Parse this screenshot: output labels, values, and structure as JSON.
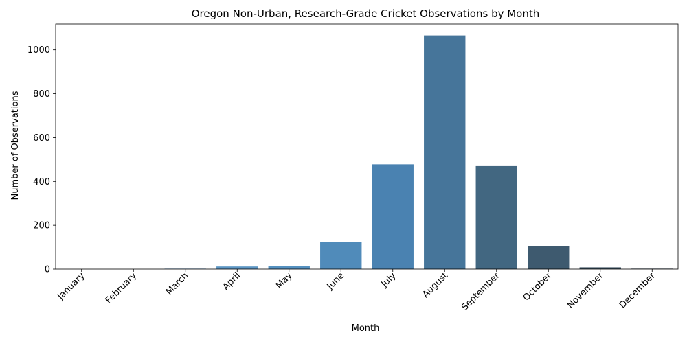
{
  "chart_data": {
    "type": "bar",
    "title": "Oregon Non-Urban, Research-Grade Cricket Observations by Month",
    "xlabel": "Month",
    "ylabel": "Number of Observations",
    "categories": [
      "January",
      "February",
      "March",
      "April",
      "May",
      "June",
      "July",
      "August",
      "September",
      "October",
      "November",
      "December"
    ],
    "values": [
      0,
      0,
      2,
      12,
      15,
      125,
      478,
      1066,
      470,
      105,
      8,
      2
    ],
    "ylim": [
      0,
      1118
    ],
    "yticks": [
      0,
      200,
      400,
      600,
      800,
      1000
    ],
    "colors": [
      "#7fa5c8",
      "#739fc9",
      "#6b9cc7",
      "#5e97c4",
      "#5591c0",
      "#508bba",
      "#4a82b1",
      "#46759a",
      "#426781",
      "#3e5a6f",
      "#3a4f5f",
      "#374554"
    ],
    "grid": false,
    "legend": "none"
  }
}
